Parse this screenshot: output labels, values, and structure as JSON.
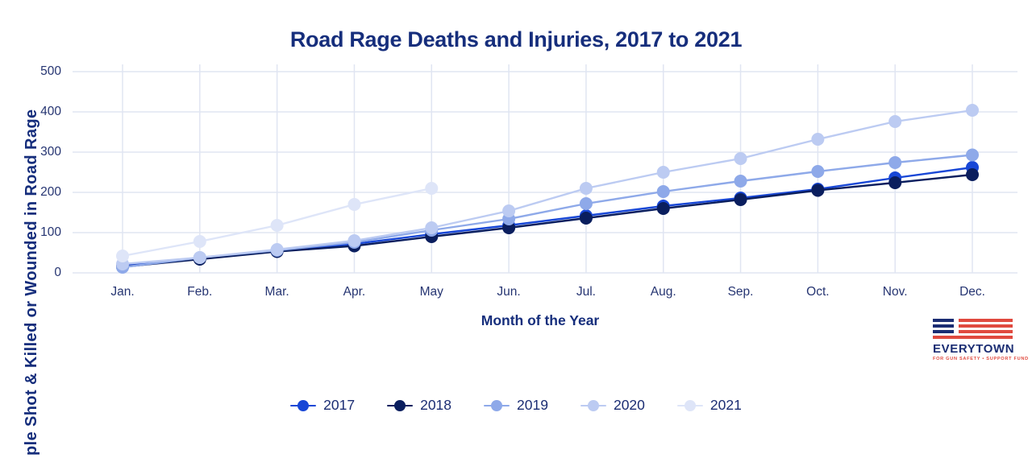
{
  "title": "Road Rage Deaths and Injuries, 2017 to 2021",
  "chart_data": {
    "type": "line",
    "categories": [
      "Jan.",
      "Feb.",
      "Mar.",
      "Apr.",
      "May",
      "Jun.",
      "Jul.",
      "Aug.",
      "Sep.",
      "Oct.",
      "Nov.",
      "Dec."
    ],
    "series": [
      {
        "name": "2017",
        "color": "#1847d6",
        "values": [
          18,
          36,
          55,
          72,
          96,
          118,
          142,
          166,
          186,
          208,
          236,
          262
        ]
      },
      {
        "name": "2018",
        "color": "#0a1e5e",
        "values": [
          15,
          34,
          53,
          67,
          90,
          112,
          136,
          160,
          182,
          205,
          224,
          244
        ]
      },
      {
        "name": "2019",
        "color": "#8ea9e9",
        "values": [
          14,
          38,
          56,
          76,
          106,
          134,
          172,
          202,
          228,
          252,
          274,
          293
        ]
      },
      {
        "name": "2020",
        "color": "#bccbf2",
        "values": [
          22,
          38,
          58,
          80,
          112,
          154,
          210,
          250,
          284,
          332,
          376,
          404
        ]
      },
      {
        "name": "2021",
        "color": "#dee5f8",
        "values": [
          42,
          78,
          118,
          170,
          210,
          null,
          null,
          null,
          null,
          null,
          null,
          null
        ]
      }
    ],
    "title": "Road Rage Deaths and Injuries, 2017 to 2021",
    "xlabel": "Month of the Year",
    "ylabel": "ple Shot & Killed or Wounded in Road Rage",
    "ylim": [
      0,
      500
    ],
    "yticks": [
      0,
      100,
      200,
      300,
      400,
      500
    ],
    "grid": true,
    "grid_color": "#e0e5f2",
    "legend_position": "bottom"
  },
  "logo": {
    "wordmark": "EVERYTOWN",
    "tagline": "FOR GUN SAFETY • SUPPORT FUND",
    "navy": "#1b2d73",
    "red": "#e04a3f"
  }
}
